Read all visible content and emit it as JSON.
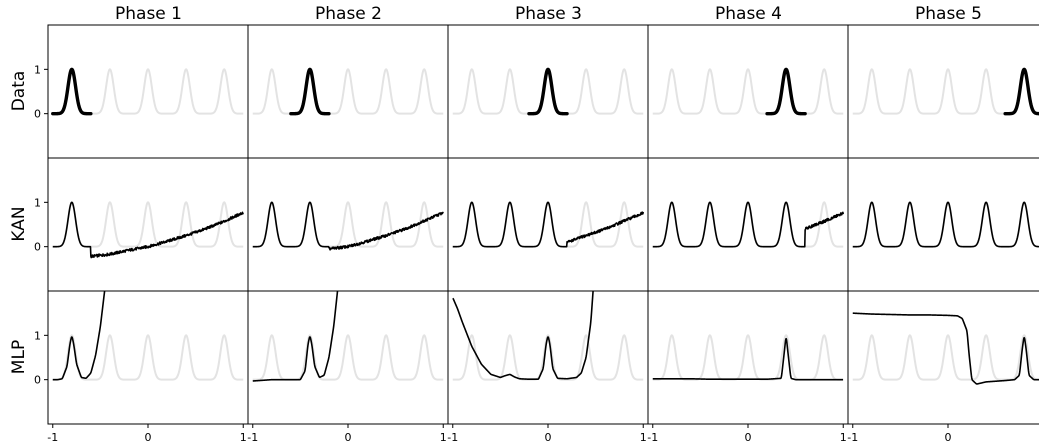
{
  "chart_data": {
    "type": "line",
    "columns": [
      "Phase 1",
      "Phase 2",
      "Phase 3",
      "Phase 4",
      "Phase 5"
    ],
    "rows": [
      "Data",
      "KAN",
      "MLP"
    ],
    "xlim": [
      -1.05,
      1.05
    ],
    "ylim": [
      -1.0,
      2.0
    ],
    "xticks": [
      "-1",
      "0",
      "1"
    ],
    "xtick_values": [
      -1,
      0,
      1
    ],
    "yticks": [
      "0",
      "1"
    ],
    "ytick_values": [
      0,
      1
    ],
    "peak_centers": [
      -0.8,
      -0.4,
      0.0,
      0.4,
      0.8
    ],
    "peak_width": 0.04,
    "background_color": "#e3e3e3",
    "line_color": "#000000",
    "data_segments": [
      [
        -1.0,
        -0.6
      ],
      [
        -0.6,
        -0.2
      ],
      [
        -0.2,
        0.2
      ],
      [
        0.2,
        0.6
      ],
      [
        0.6,
        1.0
      ]
    ],
    "kan_tail": [
      {
        "x": [
          -0.6,
          -0.4,
          -0.2,
          0.0,
          0.2,
          0.4,
          0.6,
          0.8,
          1.0
        ],
        "y": [
          -0.22,
          -0.17,
          -0.08,
          0.0,
          0.12,
          0.25,
          0.4,
          0.57,
          0.77
        ]
      },
      {
        "x": [
          -0.2,
          0.0,
          0.2,
          0.4,
          0.6,
          0.8,
          1.0
        ],
        "y": [
          -0.05,
          0.0,
          0.12,
          0.25,
          0.4,
          0.58,
          0.77
        ]
      },
      {
        "x": [
          0.2,
          0.4,
          0.6,
          0.8,
          1.0
        ],
        "y": [
          0.1,
          0.25,
          0.4,
          0.58,
          0.76
        ]
      },
      {
        "x": [
          0.6,
          0.8,
          1.0
        ],
        "y": [
          0.4,
          0.57,
          0.76
        ]
      },
      null
    ],
    "mlp_curves": [
      {
        "x": [
          -1.0,
          -0.95,
          -0.9,
          -0.85,
          -0.82,
          -0.8,
          -0.78,
          -0.75,
          -0.7,
          -0.65,
          -0.6,
          -0.55,
          -0.5,
          -0.45,
          -0.4
        ],
        "y": [
          0.0,
          0.0,
          0.02,
          0.3,
          0.8,
          1.0,
          0.8,
          0.35,
          0.05,
          0.03,
          0.15,
          0.55,
          1.2,
          2.1,
          3.0
        ]
      },
      {
        "x": [
          -1.0,
          -0.8,
          -0.6,
          -0.5,
          -0.45,
          -0.42,
          -0.4,
          -0.38,
          -0.35,
          -0.3,
          -0.25,
          -0.2,
          -0.15,
          -0.1,
          -0.05
        ],
        "y": [
          -0.03,
          0.0,
          0.0,
          0.0,
          0.2,
          0.8,
          1.0,
          0.8,
          0.3,
          0.05,
          0.1,
          0.5,
          1.2,
          2.2,
          3.0
        ]
      },
      {
        "x": [
          -1.0,
          -0.95,
          -0.9,
          -0.8,
          -0.7,
          -0.6,
          -0.5,
          -0.45,
          -0.4,
          -0.35,
          -0.3,
          -0.2,
          -0.1,
          -0.05,
          -0.02,
          0.0,
          0.02,
          0.05,
          0.1,
          0.2,
          0.3,
          0.35,
          0.4,
          0.45,
          0.48,
          0.5
        ],
        "y": [
          1.85,
          1.6,
          1.3,
          0.75,
          0.35,
          0.12,
          0.05,
          0.09,
          0.12,
          0.06,
          0.02,
          0.01,
          0.01,
          0.25,
          0.8,
          1.0,
          0.8,
          0.25,
          0.03,
          0.02,
          0.05,
          0.15,
          0.5,
          1.3,
          2.2,
          3.0
        ]
      },
      {
        "x": [
          -1.0,
          -0.8,
          -0.6,
          -0.4,
          -0.2,
          0.0,
          0.2,
          0.35,
          0.38,
          0.4,
          0.42,
          0.45,
          0.5,
          0.7,
          0.9,
          1.0
        ],
        "y": [
          0.02,
          0.02,
          0.02,
          0.01,
          0.01,
          0.01,
          0.01,
          0.03,
          0.6,
          1.0,
          0.6,
          0.03,
          0.0,
          0.0,
          0.0,
          0.0
        ]
      },
      {
        "x": [
          -1.0,
          -0.8,
          -0.6,
          -0.4,
          -0.2,
          0.0,
          0.1,
          0.15,
          0.2,
          0.22,
          0.25,
          0.3,
          0.4,
          0.6,
          0.7,
          0.75,
          0.78,
          0.8,
          0.82,
          0.85,
          0.9,
          1.0
        ],
        "y": [
          1.5,
          1.48,
          1.47,
          1.46,
          1.46,
          1.45,
          1.44,
          1.38,
          1.1,
          0.6,
          0.0,
          -0.1,
          -0.05,
          -0.02,
          0.0,
          0.1,
          0.7,
          1.0,
          0.7,
          0.1,
          0.0,
          0.0
        ]
      }
    ]
  }
}
